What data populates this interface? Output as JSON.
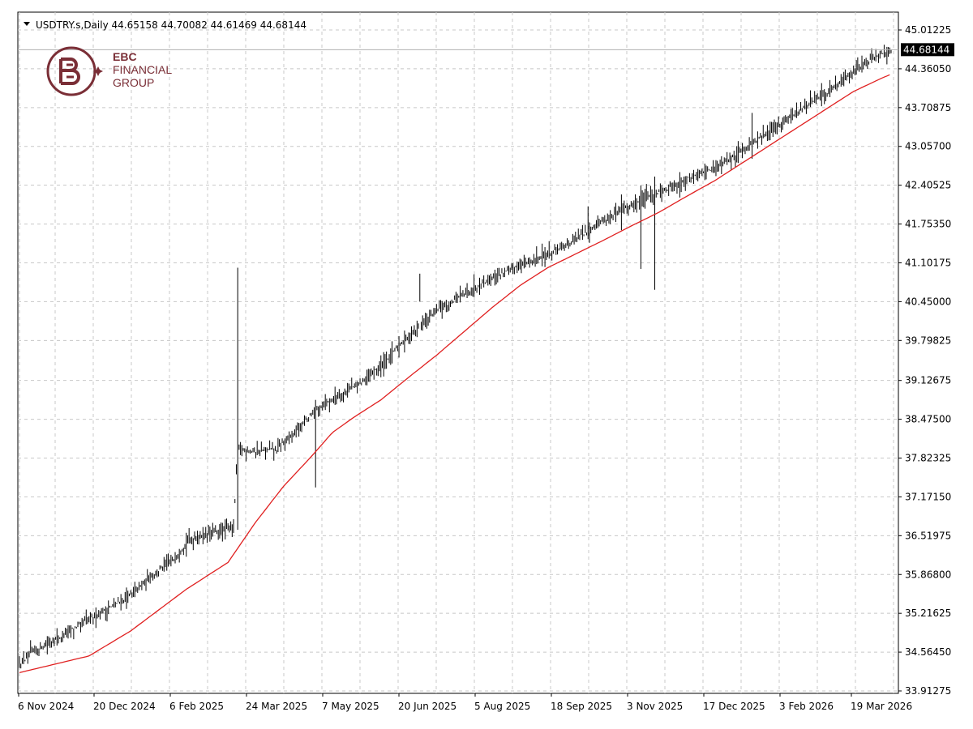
{
  "header": {
    "symbol": "USDTRY.s,Daily",
    "ohlc": "44.65158 44.70082 44.61469 44.68144",
    "dropdown_icon": "triangle-down-icon"
  },
  "logo": {
    "line1": "EBC",
    "line2": "FINANCIAL",
    "line3": "GROUP",
    "icon": "ebc-monogram-icon",
    "color": "#7a2e36"
  },
  "chart_data": {
    "type": "line",
    "title": "USDTRY.s,Daily",
    "xlabel": "",
    "ylabel": "",
    "grid": true,
    "ylim": [
      33.91275,
      45.01225
    ],
    "current_price": "44.68144",
    "y_ticks": [
      "45.01225",
      "44.36050",
      "43.70875",
      "43.05700",
      "42.40525",
      "41.75350",
      "41.10175",
      "40.45000",
      "39.79825",
      "39.12675",
      "38.47500",
      "37.82325",
      "37.17150",
      "36.51975",
      "35.86800",
      "35.21625",
      "34.56450",
      "33.91275"
    ],
    "x_ticks": [
      "6 Nov 2024",
      "20 Dec 2024",
      "6 Feb 2025",
      "24 Mar 2025",
      "7 May 2025",
      "20 Jun 2025",
      "5 Aug 2025",
      "18 Sep 2025",
      "3 Nov 2025",
      "17 Dec 2025",
      "3 Feb 2026",
      "19 Mar 2026"
    ],
    "series": [
      {
        "type": "ohlc-bar",
        "color": "#000000",
        "anchors": [
          [
            0,
            34.33
          ],
          [
            10,
            34.58
          ],
          [
            25,
            34.75
          ],
          [
            40,
            34.98
          ],
          [
            55,
            35.18
          ],
          [
            68,
            35.35
          ],
          [
            80,
            35.52
          ],
          [
            95,
            35.85
          ],
          [
            110,
            36.1
          ],
          [
            122,
            36.45
          ],
          [
            135,
            36.55
          ],
          [
            148,
            36.62
          ],
          [
            154,
            36.68
          ],
          [
            157,
            37.98
          ],
          [
            170,
            37.93
          ],
          [
            185,
            37.98
          ],
          [
            200,
            38.3
          ],
          [
            215,
            38.68
          ],
          [
            230,
            38.88
          ],
          [
            250,
            39.15
          ],
          [
            265,
            39.5
          ],
          [
            280,
            39.88
          ],
          [
            300,
            40.3
          ],
          [
            320,
            40.58
          ],
          [
            340,
            40.85
          ],
          [
            360,
            41.05
          ],
          [
            380,
            41.25
          ],
          [
            400,
            41.5
          ],
          [
            420,
            41.82
          ],
          [
            440,
            42.05
          ],
          [
            450,
            42.2
          ],
          [
            470,
            42.38
          ],
          [
            480,
            42.5
          ],
          [
            500,
            42.7
          ],
          [
            520,
            43.0
          ],
          [
            540,
            43.3
          ],
          [
            560,
            43.65
          ],
          [
            580,
            43.95
          ],
          [
            600,
            44.32
          ],
          [
            620,
            44.62
          ],
          [
            627,
            44.68
          ]
        ],
        "spikes": [
          [
            157,
            36.62,
            41.02
          ],
          [
            213,
            37.33,
            38.8
          ],
          [
            288,
            40.45,
            40.92
          ],
          [
            409,
            41.5,
            42.05
          ],
          [
            433,
            41.65,
            42.25
          ],
          [
            447,
            41.0,
            42.4
          ],
          [
            457,
            40.65,
            42.55
          ],
          [
            527,
            42.85,
            43.62
          ]
        ]
      },
      {
        "type": "moving-average",
        "color": "#e02020",
        "values": [
          [
            0,
            34.22
          ],
          [
            50,
            34.5
          ],
          [
            80,
            34.92
          ],
          [
            120,
            35.62
          ],
          [
            150,
            36.07
          ],
          [
            170,
            36.75
          ],
          [
            190,
            37.35
          ],
          [
            210,
            37.85
          ],
          [
            225,
            38.25
          ],
          [
            240,
            38.5
          ],
          [
            260,
            38.8
          ],
          [
            280,
            39.18
          ],
          [
            300,
            39.55
          ],
          [
            320,
            39.95
          ],
          [
            340,
            40.35
          ],
          [
            360,
            40.72
          ],
          [
            380,
            41.02
          ],
          [
            400,
            41.25
          ],
          [
            420,
            41.48
          ],
          [
            440,
            41.72
          ],
          [
            460,
            41.95
          ],
          [
            480,
            42.22
          ],
          [
            500,
            42.48
          ],
          [
            520,
            42.78
          ],
          [
            540,
            43.08
          ],
          [
            560,
            43.38
          ],
          [
            580,
            43.68
          ],
          [
            600,
            43.98
          ],
          [
            620,
            44.2
          ],
          [
            627,
            44.27
          ]
        ]
      }
    ]
  }
}
